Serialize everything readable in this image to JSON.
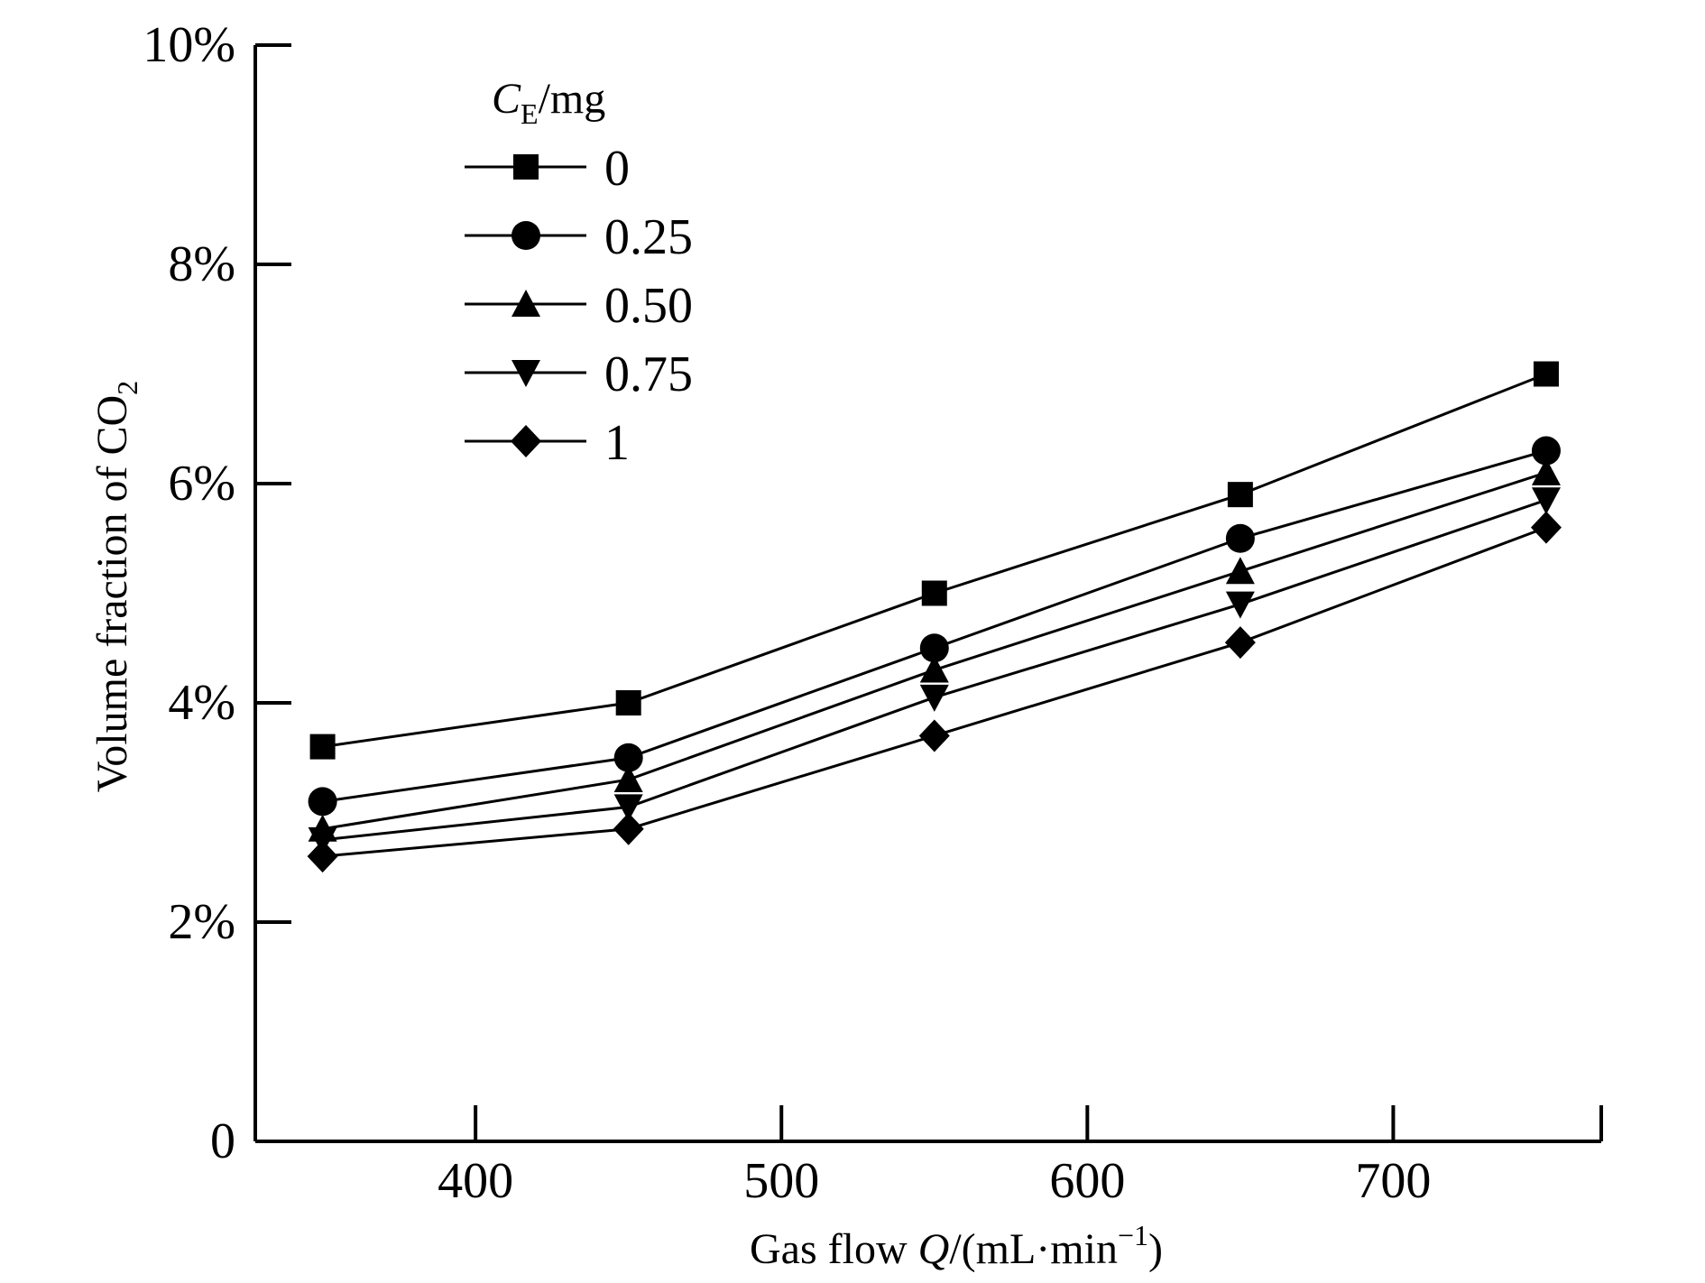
{
  "chart_data": {
    "type": "line",
    "title": "",
    "xlabel": {
      "prefix": "Gas flow ",
      "italic": "Q",
      "unit_open": "/(mL·min",
      "unit_sup": "−1",
      "unit_close": ")"
    },
    "ylabel": {
      "main": "Volume fraction of CO",
      "sub": "2"
    },
    "xlim": [
      328,
      768
    ],
    "ylim": [
      0,
      10
    ],
    "x_ticks": [
      400,
      500,
      600,
      700
    ],
    "x_tick_labels": [
      "400",
      "500",
      "600",
      "700"
    ],
    "y_ticks": [
      0,
      2,
      4,
      6,
      8,
      10
    ],
    "y_tick_labels": [
      "0",
      "2%",
      "4%",
      "6%",
      "8%",
      "10%"
    ],
    "legend": {
      "title_italic": "C",
      "title_sub": "E",
      "title_rest": "/mg",
      "position": "top-left"
    },
    "x": [
      350,
      450,
      550,
      650,
      750
    ],
    "series": [
      {
        "name": "0",
        "marker": "square",
        "values": [
          3.6,
          4.0,
          5.0,
          5.9,
          7.0
        ]
      },
      {
        "name": "0.25",
        "marker": "circle",
        "values": [
          3.1,
          3.5,
          4.5,
          5.5,
          6.3
        ]
      },
      {
        "name": "0.50",
        "marker": "triangle-up",
        "values": [
          2.85,
          3.3,
          4.3,
          5.2,
          6.1
        ]
      },
      {
        "name": "0.75",
        "marker": "triangle-down",
        "values": [
          2.75,
          3.05,
          4.05,
          4.9,
          5.85
        ]
      },
      {
        "name": "1",
        "marker": "diamond",
        "values": [
          2.6,
          2.85,
          3.7,
          4.55,
          5.6
        ]
      }
    ]
  }
}
